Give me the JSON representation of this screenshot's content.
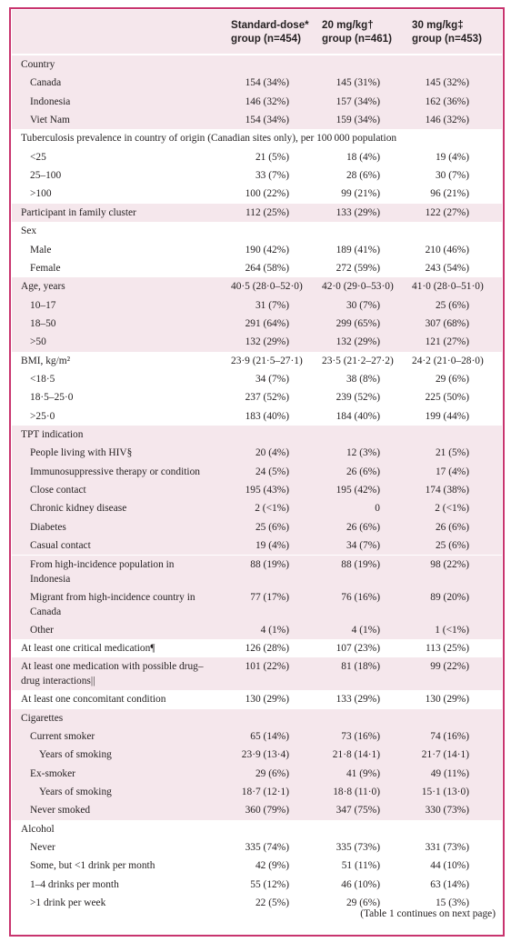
{
  "table": {
    "headers": [
      {
        "line1": "Standard-dose*",
        "line2": "group (n=454)"
      },
      {
        "line1": "20 mg/kg†",
        "line2": "group (n=461)"
      },
      {
        "line1": "30 mg/kg‡",
        "line2": "group (n=453)"
      }
    ],
    "rows": [
      {
        "label": "Country",
        "indent": 0,
        "shade": true,
        "values": [
          "",
          "",
          ""
        ]
      },
      {
        "label": "Canada",
        "indent": 1,
        "shade": true,
        "values": [
          "154 (34%)",
          "145 (31%)",
          "145 (32%)"
        ]
      },
      {
        "label": "Indonesia",
        "indent": 1,
        "shade": true,
        "values": [
          "146 (32%)",
          "157 (34%)",
          "162 (36%)"
        ]
      },
      {
        "label": "Viet Nam",
        "indent": 1,
        "shade": true,
        "values": [
          "154 (34%)",
          "159 (34%)",
          "146 (32%)"
        ]
      },
      {
        "label": "Tuberculosis prevalence in country of origin (Canadian sites only), per 100 000 population",
        "indent": 0,
        "shade": false,
        "values": [
          "",
          "",
          ""
        ]
      },
      {
        "label": "<25",
        "indent": 1,
        "shade": false,
        "values": [
          "21 (5%)",
          "18 (4%)",
          "19 (4%)"
        ]
      },
      {
        "label": "25–100",
        "indent": 1,
        "shade": false,
        "values": [
          "33 (7%)",
          "28 (6%)",
          "30 (7%)"
        ]
      },
      {
        "label": ">100",
        "indent": 1,
        "shade": false,
        "values": [
          "100 (22%)",
          "99 (21%)",
          "96 (21%)"
        ]
      },
      {
        "label": "Participant in family cluster",
        "indent": 0,
        "shade": true,
        "values": [
          "112 (25%)",
          "133 (29%)",
          "122 (27%)"
        ]
      },
      {
        "label": "Sex",
        "indent": 0,
        "shade": false,
        "values": [
          "",
          "",
          ""
        ]
      },
      {
        "label": "Male",
        "indent": 1,
        "shade": false,
        "values": [
          "190 (42%)",
          "189 (41%)",
          "210 (46%)"
        ]
      },
      {
        "label": "Female",
        "indent": 1,
        "shade": false,
        "values": [
          "264 (58%)",
          "272 (59%)",
          "243 (54%)"
        ]
      },
      {
        "label": "Age, years",
        "indent": 0,
        "shade": true,
        "values": [
          "40·5 (28·0–52·0)",
          "42·0 (29·0–53·0)",
          "41·0 (28·0–51·0)"
        ]
      },
      {
        "label": "10–17",
        "indent": 1,
        "shade": true,
        "values": [
          "31 (7%)",
          "30 (7%)",
          "25 (6%)"
        ]
      },
      {
        "label": "18–50",
        "indent": 1,
        "shade": true,
        "values": [
          "291 (64%)",
          "299 (65%)",
          "307 (68%)"
        ]
      },
      {
        "label": ">50",
        "indent": 1,
        "shade": true,
        "values": [
          "132 (29%)",
          "132 (29%)",
          "121 (27%)"
        ]
      },
      {
        "label": "BMI, kg/m²",
        "indent": 0,
        "shade": false,
        "values": [
          "23·9 (21·5–27·1)",
          "23·5 (21·2–27·2)",
          "24·2 (21·0–28·0)"
        ]
      },
      {
        "label": "<18·5",
        "indent": 1,
        "shade": false,
        "values": [
          "34 (7%)",
          "38 (8%)",
          "29 (6%)"
        ]
      },
      {
        "label": "18·5–25·0",
        "indent": 1,
        "shade": false,
        "values": [
          "237 (52%)",
          "239 (52%)",
          "225 (50%)"
        ]
      },
      {
        "label": ">25·0",
        "indent": 1,
        "shade": false,
        "values": [
          "183 (40%)",
          "184 (40%)",
          "199 (44%)"
        ]
      },
      {
        "label": "TPT indication",
        "indent": 0,
        "shade": true,
        "values": [
          "",
          "",
          ""
        ]
      },
      {
        "label": "People living with HIV§",
        "indent": 1,
        "shade": true,
        "values": [
          "20 (4%)",
          "12 (3%)",
          "21 (5%)"
        ]
      },
      {
        "label": "Immunosuppressive therapy or condition",
        "indent": 1,
        "shade": true,
        "values": [
          "24 (5%)",
          "26 (6%)",
          "17 (4%)"
        ]
      },
      {
        "label": "Close contact",
        "indent": 1,
        "shade": true,
        "values": [
          "195 (43%)",
          "195 (42%)",
          "174 (38%)"
        ]
      },
      {
        "label": "Chronic kidney disease",
        "indent": 1,
        "shade": true,
        "values": [
          "2 (<1%)",
          "0",
          "2 (<1%)"
        ]
      },
      {
        "label": "Diabetes",
        "indent": 1,
        "shade": true,
        "values": [
          "25 (6%)",
          "26 (6%)",
          "26 (6%)"
        ]
      },
      {
        "label": "Casual contact",
        "indent": 1,
        "shade": true,
        "values": [
          "19 (4%)",
          "34 (7%)",
          "25 (6%)"
        ]
      },
      {
        "label": "From high-incidence population in",
        "label2": "Indonesia",
        "indent": 1,
        "shade": true,
        "values": [
          "88 (19%)",
          "88 (19%)",
          "98 (22%)"
        ]
      },
      {
        "label": "Migrant from high-incidence country in",
        "label2": "Canada",
        "indent": 1,
        "shade": true,
        "values": [
          "77 (17%)",
          "76 (16%)",
          "89 (20%)"
        ]
      },
      {
        "label": "Other",
        "indent": 1,
        "shade": true,
        "values": [
          "4 (1%)",
          "4 (1%)",
          "1 (<1%)"
        ]
      },
      {
        "label": "At least one critical medication¶",
        "indent": 0,
        "shade": false,
        "values": [
          "126 (28%)",
          "107 (23%)",
          "113 (25%)"
        ]
      },
      {
        "label": "At least one medication with possible drug–",
        "label2": "drug interactions||",
        "indent": 0,
        "shade": true,
        "values": [
          "101 (22%)",
          "81 (18%)",
          "99 (22%)"
        ]
      },
      {
        "label": "At least one concomitant condition",
        "indent": 0,
        "shade": false,
        "values": [
          "130 (29%)",
          "133 (29%)",
          "130 (29%)"
        ]
      },
      {
        "label": "Cigarettes",
        "indent": 0,
        "shade": true,
        "values": [
          "",
          "",
          ""
        ]
      },
      {
        "label": "Current smoker",
        "indent": 1,
        "shade": true,
        "values": [
          "65 (14%)",
          "73 (16%)",
          "74 (16%)"
        ]
      },
      {
        "label": "Years of smoking",
        "indent": 2,
        "shade": true,
        "values": [
          "23·9 (13·4)",
          "21·8 (14·1)",
          "21·7 (14·1)"
        ]
      },
      {
        "label": "Ex-smoker",
        "indent": 1,
        "shade": true,
        "values": [
          "29 (6%)",
          "41 (9%)",
          "49 (11%)"
        ]
      },
      {
        "label": "Years of smoking",
        "indent": 2,
        "shade": true,
        "values": [
          "18·7 (12·1)",
          "18·8 (11·0)",
          "15·1 (13·0)"
        ]
      },
      {
        "label": "Never smoked",
        "indent": 1,
        "shade": true,
        "values": [
          "360 (79%)",
          "347 (75%)",
          "330 (73%)"
        ]
      },
      {
        "label": "Alcohol",
        "indent": 0,
        "shade": false,
        "values": [
          "",
          "",
          ""
        ]
      },
      {
        "label": "Never",
        "indent": 1,
        "shade": false,
        "values": [
          "335 (74%)",
          "335 (73%)",
          "331 (73%)"
        ]
      },
      {
        "label": "Some, but <1 drink per month",
        "indent": 1,
        "shade": false,
        "values": [
          "42 (9%)",
          "51 (11%)",
          "44 (10%)"
        ]
      },
      {
        "label": "1–4 drinks per month",
        "indent": 1,
        "shade": false,
        "values": [
          "55 (12%)",
          "46 (10%)",
          "63 (14%)"
        ]
      },
      {
        "label": ">1 drink per week",
        "indent": 1,
        "shade": false,
        "values": [
          "22 (5%)",
          "29 (6%)",
          "15 (3%)"
        ]
      }
    ]
  },
  "footer": "(Table 1 continues on next page)"
}
